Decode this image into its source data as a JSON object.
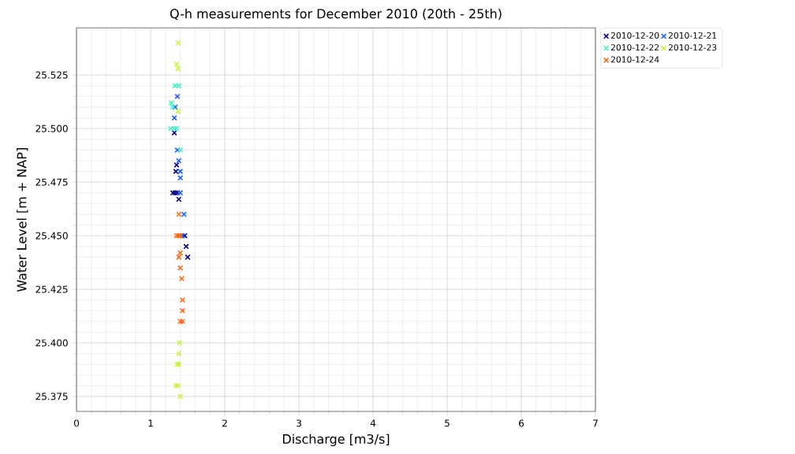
{
  "chart_data": {
    "type": "scatter",
    "title": "Q-h measurements for December 2010 (20th - 25th)",
    "xlabel": "Discharge [m3/s]",
    "ylabel": "Water Level [m + NAP]",
    "series": [
      {
        "name": "2010-12-20",
        "color": "#00008b",
        "x": [
          1.32,
          1.35,
          1.34,
          1.3,
          1.33,
          1.36,
          1.38,
          1.46,
          1.48,
          1.5
        ],
        "values": [
          25.498,
          25.483,
          25.48,
          25.47,
          25.47,
          25.47,
          25.467,
          25.45,
          25.445,
          25.44
        ]
      },
      {
        "name": "2010-12-21",
        "color": "#1f5cff",
        "x": [
          1.36,
          1.33,
          1.32,
          1.36,
          1.38,
          1.4,
          1.4,
          1.4,
          1.45,
          1.43
        ],
        "values": [
          25.515,
          25.51,
          25.505,
          25.49,
          25.485,
          25.48,
          25.477,
          25.47,
          25.46,
          25.45
        ]
      },
      {
        "name": "2010-12-22",
        "color": "#40f5c8",
        "x": [
          1.38,
          1.33,
          1.28,
          1.3,
          1.27,
          1.32,
          1.35,
          1.4
        ],
        "values": [
          25.52,
          25.52,
          25.512,
          25.51,
          25.5,
          25.5,
          25.5,
          25.49
        ]
      },
      {
        "name": "2010-12-23",
        "color": "#c5f53a",
        "x": [
          1.37,
          1.35,
          1.37,
          1.37,
          1.39,
          1.38,
          1.36,
          1.38,
          1.34,
          1.37,
          1.4
        ],
        "values": [
          25.54,
          25.53,
          25.528,
          25.508,
          25.4,
          25.395,
          25.39,
          25.39,
          25.38,
          25.38,
          25.375
        ]
      },
      {
        "name": "2010-12-24",
        "color": "#ff6a1a",
        "x": [
          1.38,
          1.35,
          1.38,
          1.4,
          1.4,
          1.38,
          1.4,
          1.42,
          1.43,
          1.43,
          1.4,
          1.43
        ],
        "values": [
          25.46,
          25.45,
          25.45,
          25.45,
          25.442,
          25.44,
          25.435,
          25.43,
          25.42,
          25.415,
          25.41,
          25.41
        ]
      }
    ],
    "xlim": [
      0,
      7
    ],
    "ylim": [
      25.368,
      25.547
    ],
    "xticks": [
      0,
      1,
      2,
      3,
      4,
      5,
      6,
      7
    ],
    "yticks": [
      {
        "value": 25.375,
        "label": "25.375"
      },
      {
        "value": 25.4,
        "label": "25.400"
      },
      {
        "value": 25.425,
        "label": "25.425"
      },
      {
        "value": 25.45,
        "label": "25.450"
      },
      {
        "value": 25.475,
        "label": "25.475"
      },
      {
        "value": 25.5,
        "label": "25.500"
      },
      {
        "value": 25.525,
        "label": "25.525"
      }
    ],
    "grid": true,
    "legend": "top right",
    "marker": "cross"
  }
}
